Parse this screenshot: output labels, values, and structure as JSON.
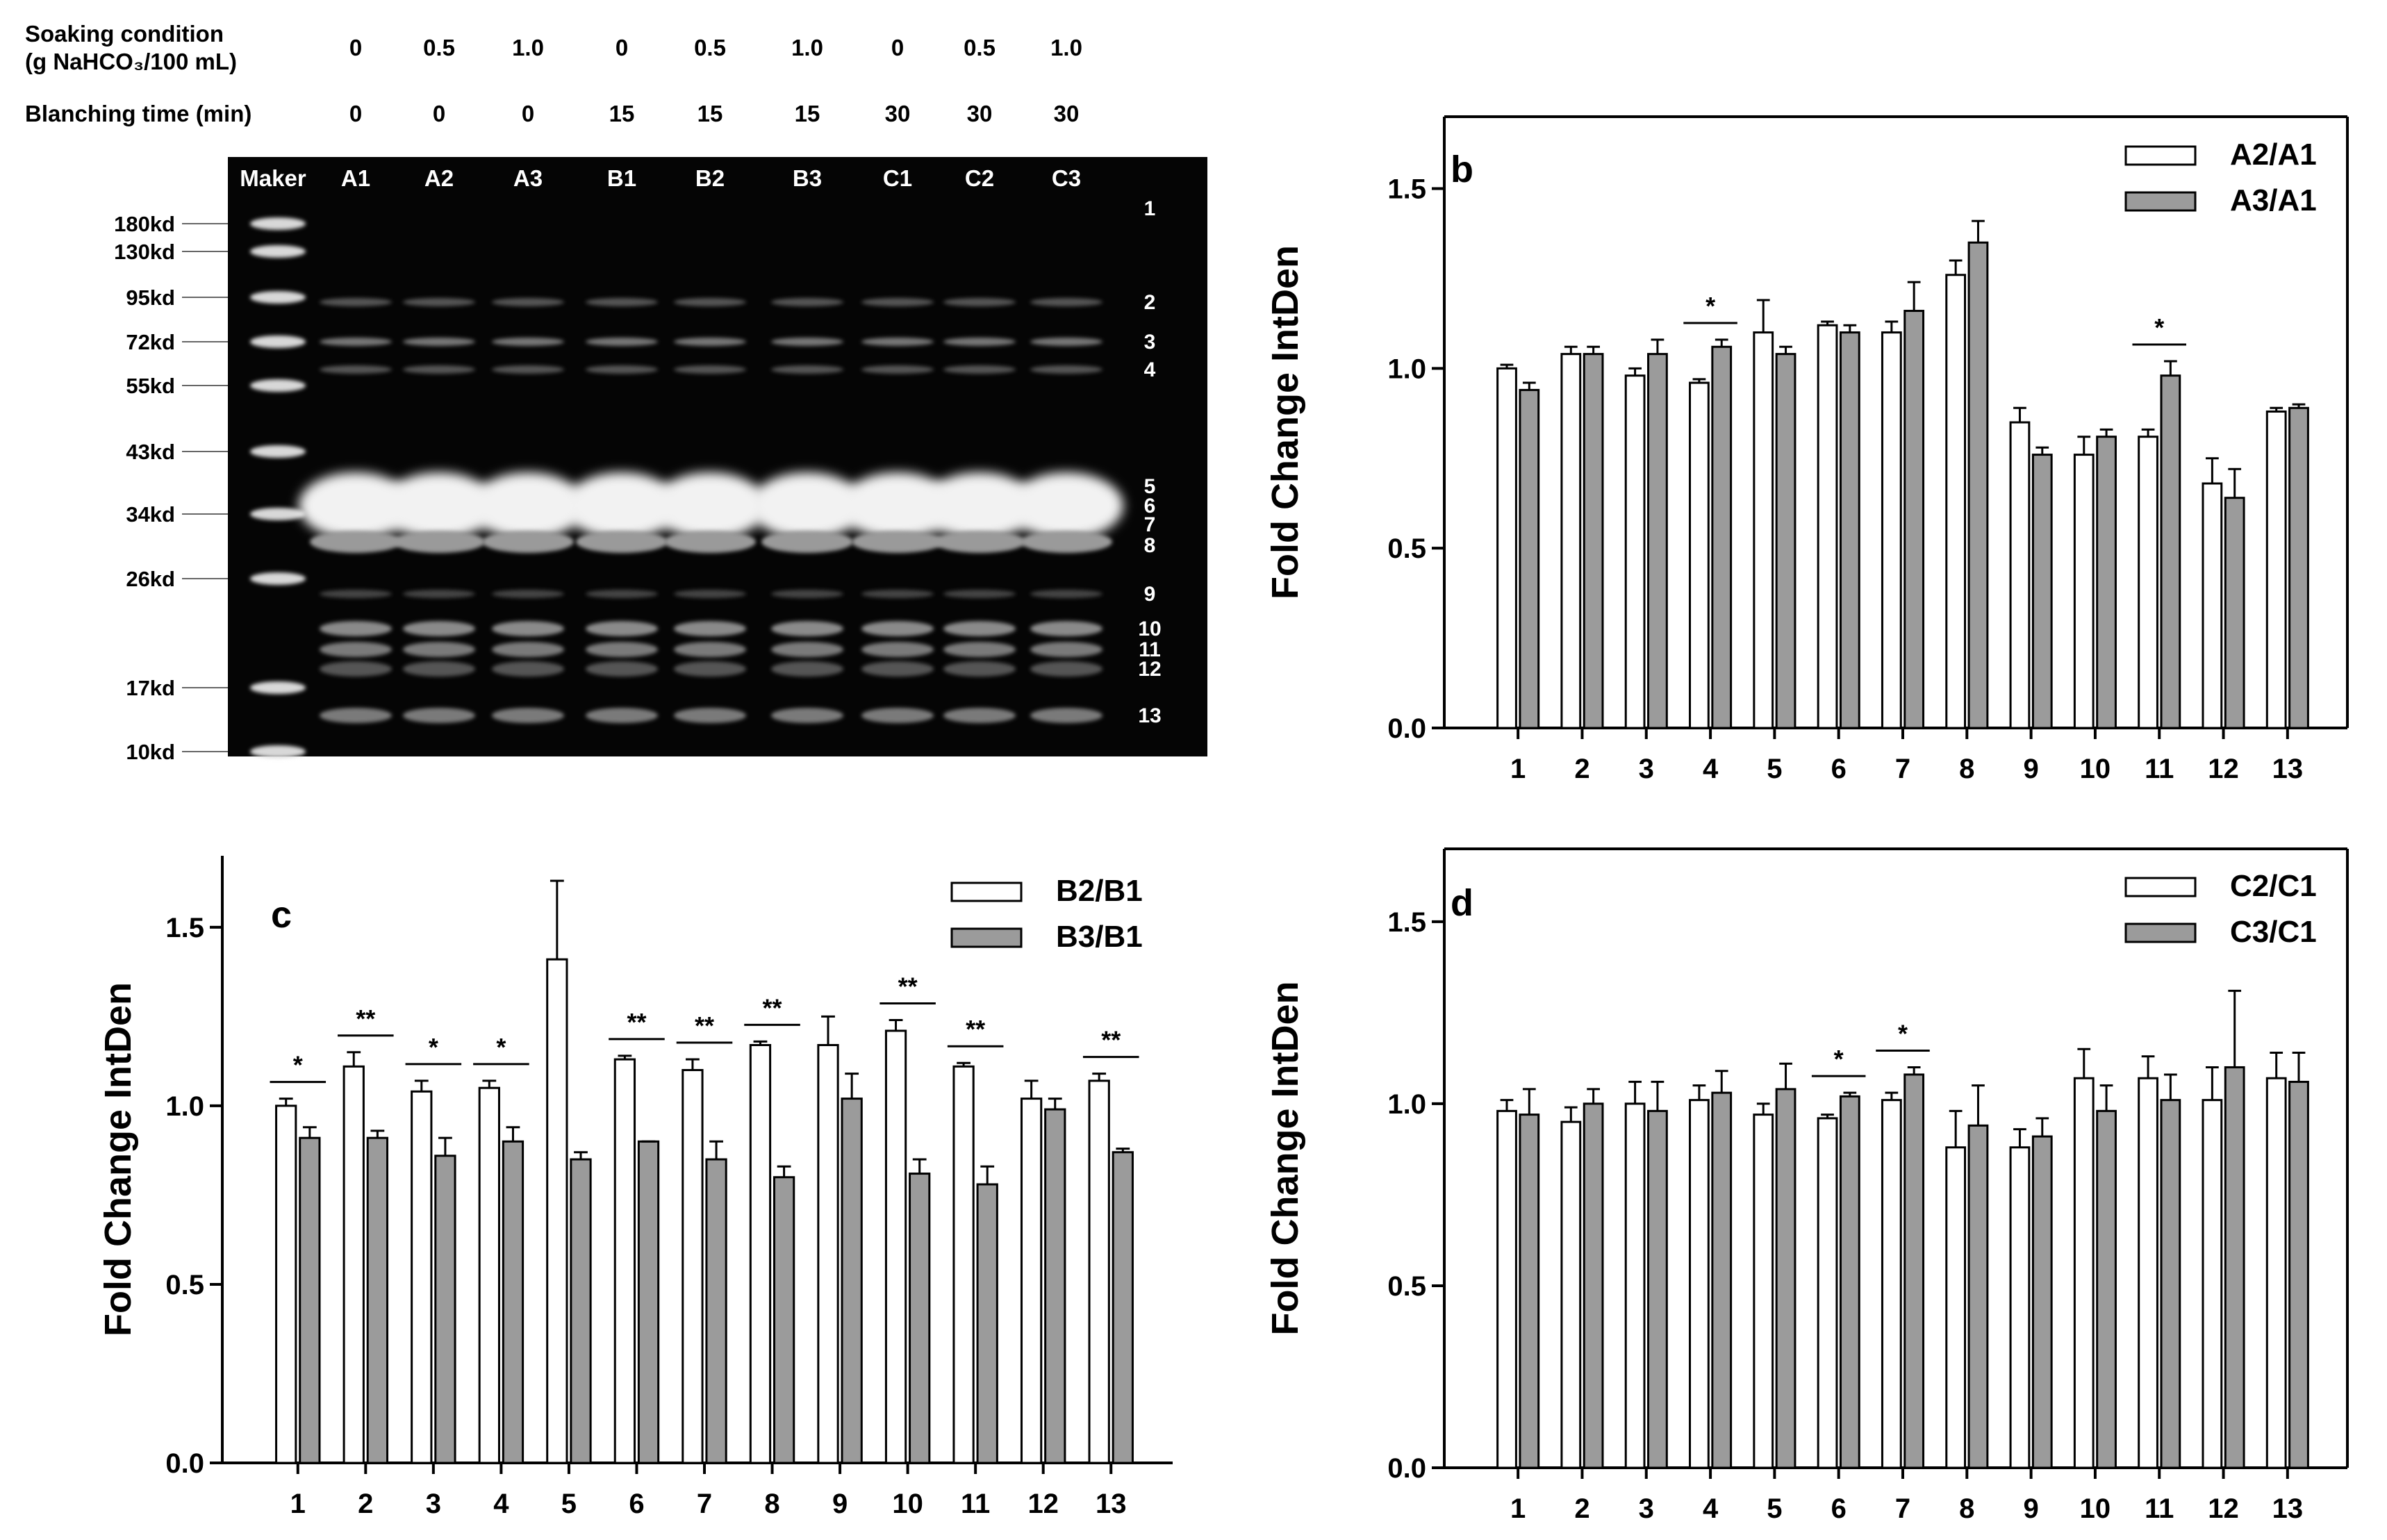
{
  "gel": {
    "soaking_label_1": "Soaking condition",
    "soaking_label_2": "(g NaHCO₃/100 mL)",
    "blanching_label": "Blanching time (min)",
    "soaking_values": [
      "0",
      "0.5",
      "1.0",
      "0",
      "0.5",
      "1.0",
      "0",
      "0.5",
      "1.0"
    ],
    "blanching_values": [
      "0",
      "0",
      "0",
      "15",
      "15",
      "15",
      "30",
      "30",
      "30"
    ],
    "lane_labels": [
      "Maker",
      "A1",
      "A2",
      "A3",
      "B1",
      "B2",
      "B3",
      "C1",
      "C2",
      "C3"
    ],
    "mw_markers": [
      "180kd",
      "130kd",
      "95kd",
      "72kd",
      "55kd",
      "43kd",
      "34kd",
      "26kd",
      "17kd",
      "10kd"
    ],
    "band_numbers": [
      "1",
      "2",
      "3",
      "4",
      "5",
      "6",
      "7",
      "8",
      "9",
      "10",
      "11",
      "12",
      "13"
    ]
  },
  "chart_data": [
    {
      "type": "bar",
      "panel_label": "b",
      "ylabel": "Fold Change IntDen",
      "ylim": [
        0,
        1.5
      ],
      "yticks": [
        "0.0",
        "0.5",
        "1.0",
        "1.5"
      ],
      "categories": [
        "1",
        "2",
        "3",
        "4",
        "5",
        "6",
        "7",
        "8",
        "9",
        "10",
        "11",
        "12",
        "13"
      ],
      "series": [
        {
          "name": "A2/A1",
          "fill": "white",
          "values": [
            1.0,
            1.04,
            0.98,
            0.96,
            1.1,
            1.12,
            1.1,
            1.26,
            0.85,
            0.76,
            0.81,
            0.68,
            0.88
          ],
          "errors": [
            0.01,
            0.02,
            0.02,
            0.01,
            0.09,
            0.01,
            0.03,
            0.04,
            0.04,
            0.05,
            0.02,
            0.07,
            0.01
          ]
        },
        {
          "name": "A3/A1",
          "fill": "gray",
          "values": [
            0.94,
            1.04,
            1.04,
            1.06,
            1.04,
            1.1,
            1.16,
            1.35,
            0.76,
            0.81,
            0.98,
            0.64,
            0.89
          ],
          "errors": [
            0.02,
            0.02,
            0.04,
            0.02,
            0.02,
            0.02,
            0.08,
            0.06,
            0.02,
            0.02,
            0.04,
            0.08,
            0.01
          ]
        }
      ],
      "significance": [
        {
          "category": "4",
          "label": "*"
        },
        {
          "category": "11",
          "label": "*"
        }
      ],
      "legend": "top-right",
      "grid": false
    },
    {
      "type": "bar",
      "panel_label": "c",
      "ylabel": "Fold Change IntDen",
      "ylim": [
        0,
        1.5
      ],
      "yticks": [
        "0.0",
        "0.5",
        "1.0",
        "1.5"
      ],
      "categories": [
        "1",
        "2",
        "3",
        "4",
        "5",
        "6",
        "7",
        "8",
        "9",
        "10",
        "11",
        "12",
        "13"
      ],
      "series": [
        {
          "name": "B2/B1",
          "fill": "white",
          "values": [
            1.0,
            1.11,
            1.04,
            1.05,
            1.41,
            1.13,
            1.1,
            1.17,
            1.17,
            1.21,
            1.11,
            1.02,
            1.07
          ],
          "errors": [
            0.02,
            0.04,
            0.03,
            0.02,
            0.22,
            0.01,
            0.03,
            0.01,
            0.08,
            0.03,
            0.01,
            0.05,
            0.02
          ]
        },
        {
          "name": "B3/B1",
          "fill": "gray",
          "values": [
            0.91,
            0.91,
            0.86,
            0.9,
            0.85,
            0.9,
            0.85,
            0.8,
            1.02,
            0.81,
            0.78,
            0.99,
            0.87
          ],
          "errors": [
            0.03,
            0.02,
            0.05,
            0.04,
            0.02,
            0.0,
            0.05,
            0.03,
            0.07,
            0.04,
            0.05,
            0.03,
            0.01
          ]
        }
      ],
      "significance": [
        {
          "category": "1",
          "label": "*"
        },
        {
          "category": "2",
          "label": "**"
        },
        {
          "category": "3",
          "label": "*"
        },
        {
          "category": "4",
          "label": "*"
        },
        {
          "category": "6",
          "label": "**"
        },
        {
          "category": "7",
          "label": "**"
        },
        {
          "category": "8",
          "label": "**"
        },
        {
          "category": "10",
          "label": "**"
        },
        {
          "category": "11",
          "label": "**"
        },
        {
          "category": "13",
          "label": "**"
        }
      ],
      "legend": "top-right",
      "grid": false
    },
    {
      "type": "bar",
      "panel_label": "d",
      "ylabel": "Fold Change IntDen",
      "ylim": [
        0,
        1.5
      ],
      "yticks": [
        "0.0",
        "0.5",
        "1.0",
        "1.5"
      ],
      "categories": [
        "1",
        "2",
        "3",
        "4",
        "5",
        "6",
        "7",
        "8",
        "9",
        "10",
        "11",
        "12",
        "13"
      ],
      "series": [
        {
          "name": "C2/C1",
          "fill": "white",
          "values": [
            0.98,
            0.95,
            1.0,
            1.01,
            0.97,
            0.96,
            1.01,
            0.88,
            0.88,
            1.07,
            1.07,
            1.01,
            1.07
          ],
          "errors": [
            0.03,
            0.04,
            0.06,
            0.04,
            0.03,
            0.01,
            0.02,
            0.1,
            0.05,
            0.08,
            0.06,
            0.09,
            0.07
          ]
        },
        {
          "name": "C3/C1",
          "fill": "gray",
          "values": [
            0.97,
            1.0,
            0.98,
            1.03,
            1.04,
            1.02,
            1.08,
            0.94,
            0.91,
            0.98,
            1.01,
            1.1,
            1.06
          ],
          "errors": [
            0.07,
            0.04,
            0.08,
            0.06,
            0.07,
            0.01,
            0.02,
            0.11,
            0.05,
            0.07,
            0.07,
            0.21,
            0.08
          ]
        }
      ],
      "significance": [
        {
          "category": "6",
          "label": "*"
        },
        {
          "category": "7",
          "label": "*"
        }
      ],
      "legend": "top-right",
      "grid": false
    }
  ]
}
